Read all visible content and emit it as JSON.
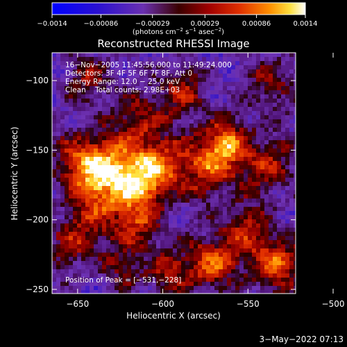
{
  "chart_data": {
    "type": "heatmap",
    "title": "Reconstructed RHESSI Image",
    "xlabel": "Heliocentric X (arcsec)",
    "ylabel": "Heliocentric Y (arcsec)",
    "xlim": [
      -665,
      -522
    ],
    "ylim": [
      -253,
      -80
    ],
    "x_ticks": [
      -650,
      -600,
      -550,
      -500
    ],
    "y_ticks": [
      -100,
      -150,
      -200,
      -250
    ],
    "x_tick_labels": [
      "−650",
      "−600",
      "−550",
      "−500"
    ],
    "y_tick_labels": [
      "−100",
      "−150",
      "−200",
      "−250"
    ],
    "colorbar": {
      "range": [
        -0.0014,
        0.0014
      ],
      "ticks": [
        -0.0014,
        -0.00086,
        -0.00029,
        0.00029,
        0.00086,
        0.0014
      ],
      "tick_labels": [
        "−0.0014",
        "−0.00086",
        "−0.00029",
        "0.00029",
        "0.00086",
        "0.0014"
      ],
      "unit_text": "(photons cm",
      "unit_sup1": "−2",
      "unit_mid": " s",
      "unit_sup2": "−1",
      "unit_mid2": " asec",
      "unit_sup3": "−2",
      "unit_end": ")"
    },
    "annotations": [
      "16−Nov−2005 11:45:56.000 to 11:49:24.000",
      "Detectors: 3F 4F 5F 6F 7F 8F, Att 0",
      "Energy Range: 12.0 − 25.0 keV",
      "Clean    Total counts: 2.98E+03"
    ],
    "peak_label": "Position of Peak = [−531,−228]",
    "peak_position": [
      -531,
      -228
    ],
    "timestamp": "3−May−2022 07:13",
    "grid": false
  }
}
